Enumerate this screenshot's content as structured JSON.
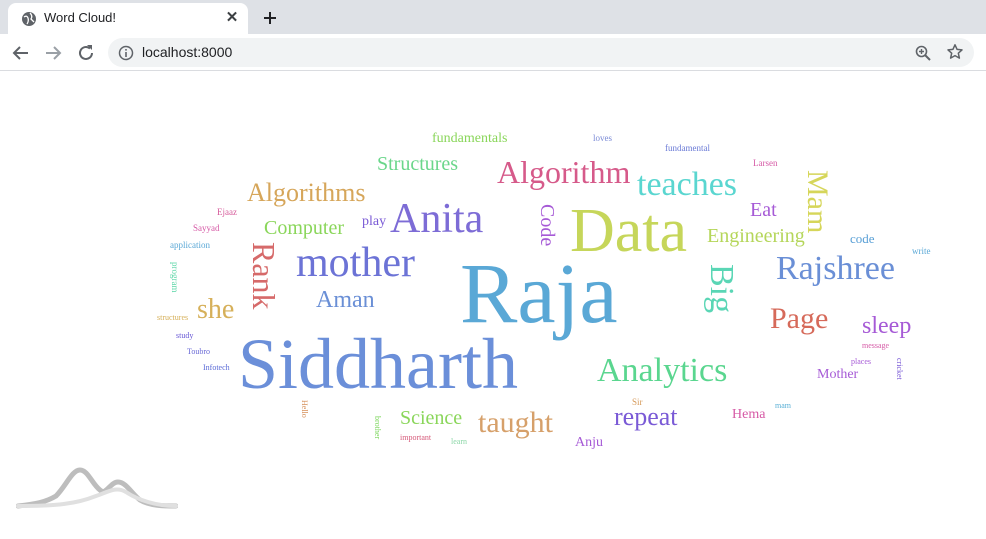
{
  "browser": {
    "tab": {
      "title": "Word Cloud!",
      "favicon": "globe-icon",
      "close_symbol": "✕"
    },
    "new_tab_symbol": "+",
    "address_bar": {
      "url": "localhost:8000"
    },
    "icons": {
      "back": "back-arrow-icon",
      "forward": "forward-arrow-icon",
      "reload": "reload-icon",
      "info": "info-icon",
      "zoom": "zoom-icon",
      "bookmark": "star-icon"
    }
  },
  "word_cloud": {
    "words": [
      {
        "text": "Raja",
        "color": "#5aa8d6"
      },
      {
        "text": "Siddharth",
        "color": "#6b8fd9"
      },
      {
        "text": "Data",
        "color": "#c6d65a"
      },
      {
        "text": "mother",
        "color": "#6c73d6"
      },
      {
        "text": "Anita",
        "color": "#7d6cd6"
      },
      {
        "text": "Algorithm",
        "color": "#d65a8a"
      },
      {
        "text": "teaches",
        "color": "#5ad6d0"
      },
      {
        "text": "Rajshree",
        "color": "#6a8fd6"
      },
      {
        "text": "Analytics",
        "color": "#5ad68f"
      },
      {
        "text": "Algorithms",
        "color": "#d6a65a"
      },
      {
        "text": "Rank",
        "color": "#d66a6a"
      },
      {
        "text": "Big",
        "color": "#5ad6b5"
      },
      {
        "text": "Mam",
        "color": "#d6d65a"
      },
      {
        "text": "taught",
        "color": "#d6a06a"
      },
      {
        "text": "Page",
        "color": "#d66a5a"
      },
      {
        "text": "she",
        "color": "#d6b05a"
      },
      {
        "text": "repeat",
        "color": "#7a5ad6"
      },
      {
        "text": "sleep",
        "color": "#a65ad6"
      },
      {
        "text": "Aman",
        "color": "#6a8fd6"
      },
      {
        "text": "Structures",
        "color": "#6ad68a"
      },
      {
        "text": "Computer",
        "color": "#8ad65a"
      },
      {
        "text": "Engineering",
        "color": "#b5d65a"
      },
      {
        "text": "Code",
        "color": "#a65ad6"
      },
      {
        "text": "Science",
        "color": "#8ad65a"
      },
      {
        "text": "Eat",
        "color": "#a65ad6"
      },
      {
        "text": "fundamentals",
        "color": "#8ad65a"
      },
      {
        "text": "Mother",
        "color": "#a65ad6"
      },
      {
        "text": "Hema",
        "color": "#d65aa6"
      },
      {
        "text": "Anju",
        "color": "#a65ad6"
      },
      {
        "text": "play",
        "color": "#7a5ad6"
      },
      {
        "text": "code",
        "color": "#5aa0d6"
      },
      {
        "text": "loves",
        "color": "#7a8ad6"
      },
      {
        "text": "fundamental",
        "color": "#6a7ad6"
      },
      {
        "text": "Larsen",
        "color": "#d65aa6"
      },
      {
        "text": "Ejaaz",
        "color": "#d65a9a"
      },
      {
        "text": "Sayyad",
        "color": "#d65aa6"
      },
      {
        "text": "application",
        "color": "#5aa8d6"
      },
      {
        "text": "write",
        "color": "#5aa8d6"
      },
      {
        "text": "program",
        "color": "#5ad6a6"
      },
      {
        "text": "structures",
        "color": "#d6b05a"
      },
      {
        "text": "study",
        "color": "#6a5ad6"
      },
      {
        "text": "Toubro",
        "color": "#6a6ad6"
      },
      {
        "text": "Infotech",
        "color": "#5a6ad6"
      },
      {
        "text": "message",
        "color": "#d65aa6"
      },
      {
        "text": "places",
        "color": "#a65ad6"
      },
      {
        "text": "cricket",
        "color": "#7a5ad6"
      },
      {
        "text": "Hello",
        "color": "#d6905a"
      },
      {
        "text": "brother",
        "color": "#7ad65a"
      },
      {
        "text": "important",
        "color": "#d65a7a"
      },
      {
        "text": "learn",
        "color": "#8ad6a6"
      },
      {
        "text": "Sir",
        "color": "#d69a5a"
      },
      {
        "text": "mam",
        "color": "#5ab0d6"
      }
    ]
  },
  "logo": "mountain-logo-icon"
}
